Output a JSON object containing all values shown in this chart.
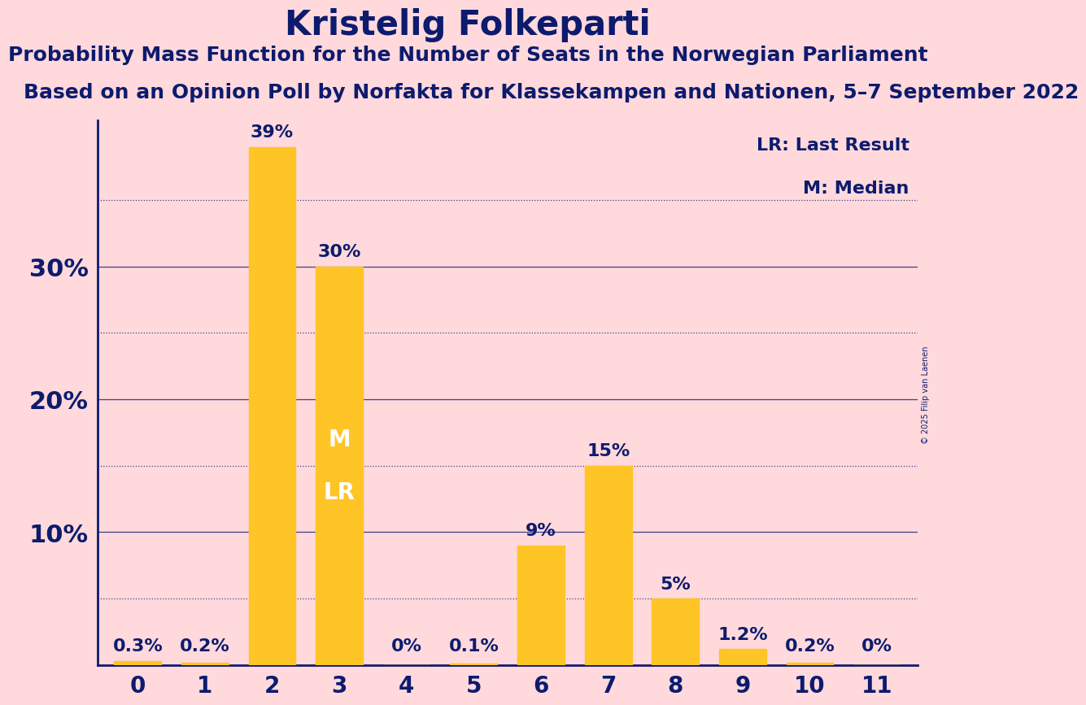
{
  "title": "Kristelig Folkeparti",
  "subtitle": "Probability Mass Function for the Number of Seats in the Norwegian Parliament",
  "source": "Based on an Opinion Poll by Norfakta for Klassekampen and Nationen, 5–7 September 2022",
  "copyright": "© 2025 Filip van Laenen",
  "categories": [
    0,
    1,
    2,
    3,
    4,
    5,
    6,
    7,
    8,
    9,
    10,
    11
  ],
  "values": [
    0.3,
    0.2,
    39.0,
    30.0,
    0.0,
    0.1,
    9.0,
    15.0,
    5.0,
    1.2,
    0.2,
    0.0
  ],
  "bar_color": "#FFC425",
  "background_color": "#FFD9DC",
  "text_color": "#0D1B6E",
  "title_fontsize": 30,
  "subtitle_fontsize": 18,
  "source_fontsize": 18,
  "bar_label_fontsize": 16,
  "tick_fontsize": 20,
  "ytick_fontsize": 22,
  "solid_yticks": [
    10,
    20,
    30
  ],
  "dotted_yticks": [
    5,
    15,
    25,
    35
  ],
  "ylim": [
    0,
    41
  ],
  "median_bar": 3,
  "lr_bar": 3,
  "median_label": "M",
  "lr_label": "LR",
  "legend_lr": "LR: Last Result",
  "legend_m": "M: Median",
  "value_labels": [
    "0.3%",
    "0.2%",
    "39%",
    "30%",
    "0%",
    "0.1%",
    "9%",
    "15%",
    "5%",
    "1.2%",
    "0.2%",
    "0%"
  ],
  "solid_grid_color": "#0D1B6E",
  "dotted_grid_color": "#0D1B6E",
  "axis_color": "#0D1B6E",
  "spine_left_color": "#0D1B6E"
}
